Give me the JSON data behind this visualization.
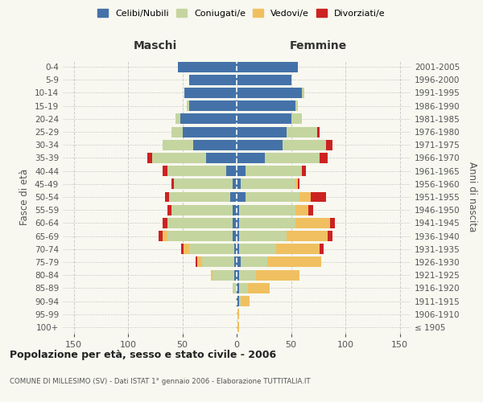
{
  "age_groups": [
    "100+",
    "95-99",
    "90-94",
    "85-89",
    "80-84",
    "75-79",
    "70-74",
    "65-69",
    "60-64",
    "55-59",
    "50-54",
    "45-49",
    "40-44",
    "35-39",
    "30-34",
    "25-29",
    "20-24",
    "15-19",
    "10-14",
    "5-9",
    "0-4"
  ],
  "birth_years": [
    "≤ 1905",
    "1906-1910",
    "1911-1915",
    "1916-1920",
    "1921-1925",
    "1926-1930",
    "1931-1935",
    "1936-1940",
    "1941-1945",
    "1946-1950",
    "1951-1955",
    "1956-1960",
    "1961-1965",
    "1966-1970",
    "1971-1975",
    "1976-1980",
    "1981-1985",
    "1986-1990",
    "1991-1995",
    "1996-2000",
    "2001-2005"
  ],
  "colors": {
    "celibi": "#4472a8",
    "coniugati": "#c5d5a0",
    "vedovi": "#f0c060",
    "divorziati": "#cc2222"
  },
  "maschi": {
    "celibi": [
      0,
      0,
      0,
      0,
      2,
      2,
      2,
      4,
      4,
      4,
      6,
      4,
      10,
      28,
      40,
      50,
      52,
      44,
      48,
      44,
      54
    ],
    "coniugati": [
      0,
      0,
      1,
      4,
      20,
      30,
      42,
      60,
      60,
      56,
      56,
      54,
      54,
      50,
      28,
      10,
      4,
      2,
      0,
      0,
      0
    ],
    "vedovi": [
      0,
      0,
      0,
      0,
      2,
      4,
      5,
      4,
      0,
      0,
      0,
      0,
      0,
      0,
      0,
      0,
      0,
      0,
      0,
      0,
      0
    ],
    "divorziati": [
      0,
      0,
      0,
      0,
      0,
      2,
      2,
      4,
      4,
      4,
      4,
      2,
      4,
      4,
      0,
      0,
      0,
      0,
      0,
      0,
      0
    ]
  },
  "femmine": {
    "celibi": [
      0,
      0,
      2,
      2,
      2,
      4,
      2,
      2,
      2,
      2,
      8,
      4,
      8,
      26,
      42,
      46,
      50,
      54,
      60,
      50,
      56
    ],
    "coniugati": [
      0,
      0,
      2,
      8,
      16,
      24,
      34,
      44,
      52,
      52,
      50,
      50,
      52,
      50,
      40,
      28,
      10,
      2,
      2,
      0,
      0
    ],
    "vedovi": [
      2,
      2,
      8,
      20,
      40,
      50,
      40,
      38,
      32,
      12,
      10,
      2,
      0,
      0,
      0,
      0,
      0,
      0,
      0,
      0,
      0
    ],
    "divorziati": [
      0,
      0,
      0,
      0,
      0,
      0,
      4,
      4,
      4,
      4,
      14,
      2,
      4,
      8,
      6,
      2,
      0,
      0,
      0,
      0,
      0
    ]
  },
  "title": "Popolazione per età, sesso e stato civile - 2006",
  "subtitle": "COMUNE DI MILLESIMO (SV) - Dati ISTAT 1° gennaio 2006 - Elaborazione TUTTITALIA.IT",
  "xlabel_left": "Maschi",
  "xlabel_right": "Femmine",
  "ylabel_left": "Fasce di età",
  "ylabel_right": "Anni di nascita",
  "xlim": 160,
  "bg_color": "#f8f8f0",
  "grid_color": "#cccccc",
  "legend_labels": [
    "Celibi/Nubili",
    "Coniugati/e",
    "Vedovi/e",
    "Divorziati/e"
  ]
}
